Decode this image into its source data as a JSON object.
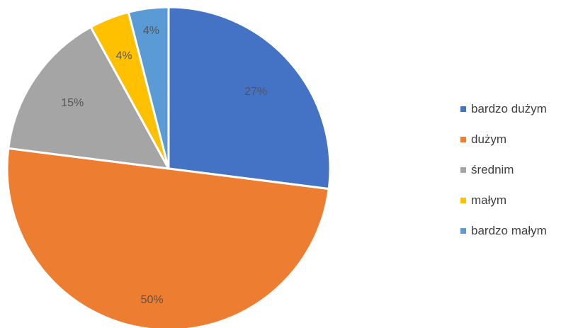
{
  "chart_data": {
    "type": "pie",
    "categories": [
      "bardzo dużym",
      "dużym",
      "średnim",
      "małym",
      "bardzo małym"
    ],
    "values": [
      27,
      50,
      15,
      4,
      4
    ],
    "data_labels": [
      "27%",
      "50%",
      "15%",
      "4%",
      "4%"
    ],
    "colors": [
      "#4472C4",
      "#ED7D31",
      "#A5A5A5",
      "#FFC000",
      "#5B9BD5"
    ],
    "legend_position": "right",
    "start_angle": "12 o'clock",
    "direction": "clockwise"
  }
}
